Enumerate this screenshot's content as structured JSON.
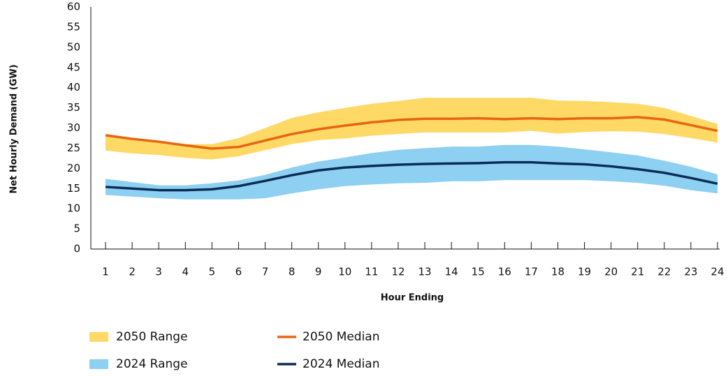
{
  "chart_data": {
    "type": "line",
    "x_label": "Hour Ending",
    "y_label": "Net Hourly Demand (GW)",
    "categories": [
      "1",
      "2",
      "3",
      "4",
      "5",
      "6",
      "7",
      "8",
      "9",
      "10",
      "11",
      "12",
      "13",
      "14",
      "15",
      "16",
      "17",
      "18",
      "19",
      "20",
      "21",
      "22",
      "23",
      "24"
    ],
    "ylim": [
      0,
      60
    ],
    "yticks": [
      0,
      5,
      10,
      15,
      20,
      25,
      30,
      35,
      40,
      45,
      50,
      55,
      60
    ],
    "series": [
      {
        "name": "2050 Range",
        "color": "#ffd966",
        "high": [
          28.3,
          27.5,
          26.8,
          26,
          26,
          27.5,
          30,
          32.5,
          33.9,
          35,
          36,
          36.7,
          37.5,
          37.5,
          37.5,
          37.5,
          37.5,
          36.8,
          36.7,
          36.4,
          36,
          35,
          33,
          31
        ],
        "low": [
          24.4,
          23.7,
          23.3,
          22.6,
          22.2,
          23,
          24.5,
          26,
          27,
          27.4,
          28.1,
          28.5,
          28.9,
          28.9,
          28.9,
          28.9,
          29.3,
          28.6,
          29,
          29.2,
          29.1,
          28.5,
          27.5,
          26.4
        ]
      },
      {
        "name": "2050 Median",
        "color": "#e8650f",
        "values": [
          28.2,
          27.3,
          26.6,
          25.7,
          24.9,
          25.3,
          26.9,
          28.5,
          29.7,
          30.6,
          31.4,
          32,
          32.3,
          32.3,
          32.4,
          32.2,
          32.4,
          32.2,
          32.4,
          32.4,
          32.7,
          32.1,
          30.7,
          29.3
        ]
      },
      {
        "name": "2024 Range",
        "color": "#8ed0f2",
        "high": [
          17.4,
          16.6,
          15.8,
          15.8,
          16.3,
          17,
          18.4,
          20.2,
          21.7,
          22.7,
          23.8,
          24.6,
          25,
          25.4,
          25.4,
          25.8,
          25.8,
          25.4,
          24.7,
          24,
          23.2,
          21.9,
          20.4,
          18.5
        ],
        "low": [
          13.4,
          13,
          12.6,
          12.3,
          12.3,
          12.3,
          12.6,
          13.8,
          14.8,
          15.6,
          16,
          16.3,
          16.4,
          16.8,
          16.8,
          17.1,
          17.1,
          17.1,
          17.1,
          16.8,
          16.4,
          15.7,
          14.6,
          13.8
        ]
      },
      {
        "name": "2024 Median",
        "color": "#0b2d55",
        "values": [
          15.4,
          15,
          14.6,
          14.6,
          14.8,
          15.6,
          16.9,
          18.3,
          19.5,
          20.2,
          20.6,
          20.9,
          21.1,
          21.2,
          21.3,
          21.5,
          21.5,
          21.2,
          21,
          20.5,
          19.8,
          18.9,
          17.6,
          16.2
        ]
      }
    ]
  }
}
